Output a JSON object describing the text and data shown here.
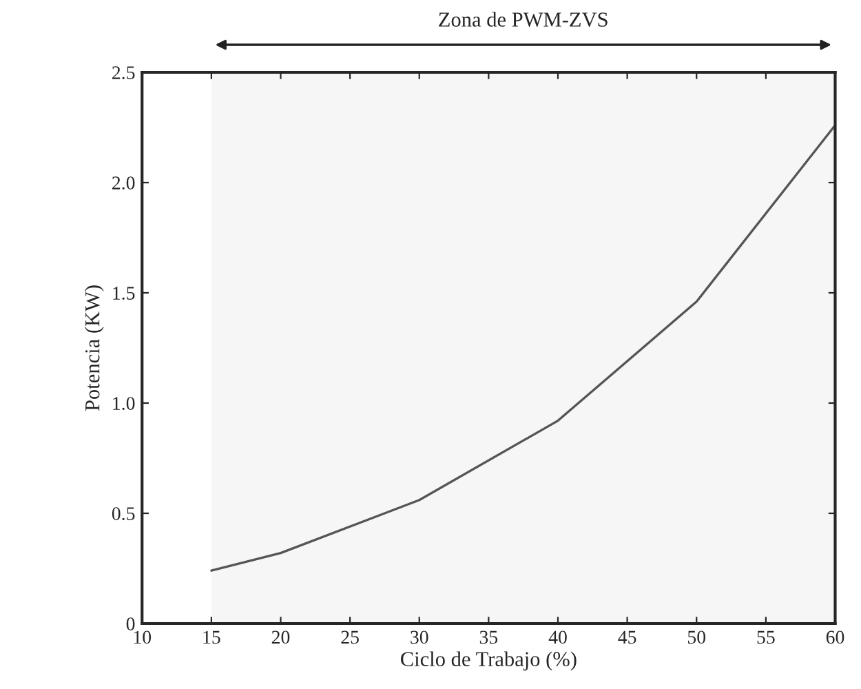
{
  "chart_data": {
    "type": "line",
    "xlabel": "Ciclo de Trabajo (%)",
    "ylabel": "Potencia (KW)",
    "x": [
      15,
      20,
      30,
      40,
      50,
      60
    ],
    "series": [
      {
        "color": "#555555",
        "values": [
          0.24,
          0.32,
          0.56,
          0.92,
          1.46,
          2.26
        ]
      }
    ],
    "xlim": [
      10,
      60
    ],
    "xticks": [
      10,
      15,
      20,
      25,
      30,
      35,
      40,
      45,
      50,
      55,
      60
    ],
    "ylim": [
      0,
      2.5
    ],
    "yticks": [
      0,
      0.5,
      {
        "value": 1,
        "label": "1.0"
      },
      1.5,
      {
        "value": 2,
        "label": "2.0"
      },
      2.5
    ],
    "bands": [
      {
        "axis": "x",
        "from": 15,
        "to": 60,
        "label": "Zona de PWM-ZVS",
        "color": "#f6f6f6"
      }
    ],
    "grid": false,
    "legend": false,
    "marker": "none",
    "line_style": "solid"
  }
}
